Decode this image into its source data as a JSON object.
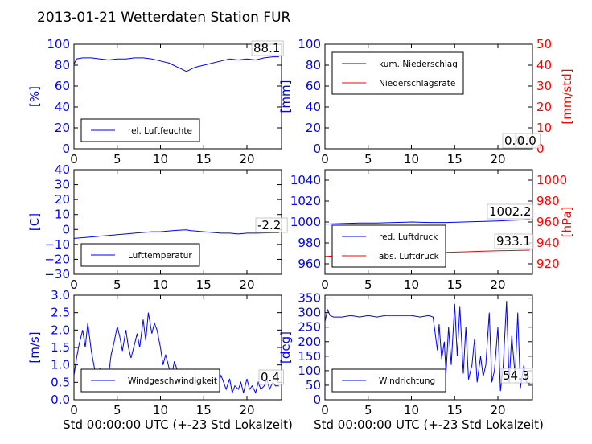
{
  "figure": {
    "title": "2013-01-21 Wetterdaten Station FUR",
    "xlabel": "Std 00:00:00 UTC (+-23 Std Lokalzeit)"
  },
  "colors": {
    "blue": "#0000ff",
    "red": "#ff0000",
    "light_blue": "#7b7bff",
    "black": "#000000"
  },
  "chart_data": [
    {
      "id": "humidity",
      "type": "line",
      "ylabel": "[%]",
      "xlim": [
        0,
        24
      ],
      "ylim": [
        0,
        100
      ],
      "xticks": [
        0,
        5,
        10,
        15,
        20
      ],
      "yticks": [
        0,
        20,
        40,
        60,
        80,
        100
      ],
      "last_value": "88.1",
      "legend": [
        {
          "label": "rel. Luftfeuchte",
          "color": "#0000ff"
        }
      ],
      "series": [
        {
          "name": "rel. Luftfeuchte",
          "color": "#0000ff",
          "x": [
            0,
            0.3,
            1,
            2,
            3,
            4,
            5,
            6,
            7,
            8,
            9,
            10,
            11,
            11.5,
            12,
            12.5,
            13,
            13.5,
            14,
            15,
            16,
            17,
            18,
            19,
            20,
            21,
            22,
            23,
            23.7
          ],
          "y": [
            81,
            86,
            87,
            87,
            86,
            85,
            86,
            86,
            87,
            87,
            86,
            84,
            82,
            80,
            78,
            76,
            74,
            76,
            78,
            80,
            82,
            84,
            86,
            85,
            86,
            85,
            87,
            88,
            88
          ]
        }
      ]
    },
    {
      "id": "precip",
      "type": "line",
      "ylabel": "[mm]",
      "y2label": "[mm/std]",
      "xlim": [
        0,
        24
      ],
      "ylim": [
        0,
        100
      ],
      "y2lim": [
        0,
        50
      ],
      "xticks": [
        0,
        5,
        10,
        15,
        20
      ],
      "yticks": [
        0,
        20,
        40,
        60,
        80,
        100
      ],
      "y2ticks": [
        0,
        10,
        20,
        30,
        40,
        50
      ],
      "last_value": "0.0",
      "last_value2": "0.0",
      "legend": [
        {
          "label": "kum. Niederschlag",
          "color": "#0000ff"
        },
        {
          "label": "Niederschlagsrate",
          "color": "#ff0000"
        }
      ],
      "series": [
        {
          "name": "kum. Niederschlag",
          "color": "#0000ff",
          "axis": "y",
          "x": [
            0,
            24
          ],
          "y": [
            0,
            0
          ]
        },
        {
          "name": "Niederschlagsrate",
          "color": "#ff0000",
          "axis": "y2",
          "x": [
            0,
            24
          ],
          "y": [
            0,
            0
          ]
        }
      ]
    },
    {
      "id": "temperature",
      "type": "line",
      "ylabel": "[C]",
      "xlim": [
        0,
        24
      ],
      "ylim": [
        -30,
        40
      ],
      "xticks": [
        0,
        5,
        10,
        15,
        20
      ],
      "yticks": [
        -30,
        -20,
        -10,
        0,
        10,
        20,
        30,
        40
      ],
      "last_value": "-2.2",
      "legend": [
        {
          "label": "Lufttemperatur",
          "color": "#0000ff"
        }
      ],
      "series": [
        {
          "name": "Lufttemperatur",
          "color": "#0000ff",
          "x": [
            0,
            1,
            2,
            3,
            4,
            5,
            6,
            7,
            8,
            9,
            10,
            11,
            12,
            13,
            13.5,
            14,
            15,
            16,
            17,
            18,
            19,
            20,
            21,
            22,
            23,
            23.7
          ],
          "y": [
            -6,
            -5.5,
            -5,
            -4.5,
            -4,
            -3.5,
            -3,
            -2.5,
            -2,
            -1.5,
            -1.5,
            -1,
            -0.5,
            -0.2,
            -0.8,
            -1,
            -1.5,
            -2,
            -2.5,
            -2.5,
            -3,
            -2.5,
            -2.5,
            -2.3,
            -2.2,
            -2.2
          ]
        }
      ]
    },
    {
      "id": "pressure",
      "type": "line",
      "y2label": "[hPa]",
      "xlim": [
        0,
        24
      ],
      "ylim": [
        950,
        1050
      ],
      "y2lim": [
        910,
        1010
      ],
      "xticks": [
        0,
        5,
        10,
        15,
        20
      ],
      "yticks": [
        960,
        980,
        1000,
        1020,
        1040
      ],
      "y2ticks": [
        920,
        940,
        960,
        980,
        1000
      ],
      "last_value": "1002.2",
      "last_value2": "933.1",
      "legend": [
        {
          "label": "red. Luftdruck",
          "color": "#0000ff"
        },
        {
          "label": "abs. Luftdruck",
          "color": "#ff0000"
        }
      ],
      "series": [
        {
          "name": "red. Luftdruck",
          "color": "#0000ff",
          "axis": "y",
          "x": [
            0,
            2,
            4,
            6,
            8,
            10,
            12,
            14,
            16,
            18,
            20,
            22,
            23.7
          ],
          "y": [
            998,
            998.5,
            999,
            999,
            999.5,
            1000,
            999.5,
            999.5,
            1000,
            1000.5,
            1001,
            1001.8,
            1002.2
          ]
        },
        {
          "name": "abs. Luftdruck",
          "color": "#ff0000",
          "axis": "y2",
          "x": [
            0,
            2,
            4,
            6,
            8,
            10,
            12,
            14,
            16,
            18,
            20,
            22,
            23.7
          ],
          "y": [
            927,
            928,
            928.5,
            929,
            929.5,
            930,
            930.5,
            931,
            931.5,
            932,
            932.5,
            932.8,
            933.1
          ]
        }
      ]
    },
    {
      "id": "wind_speed",
      "type": "line",
      "ylabel": "[m/s]",
      "xlim": [
        0,
        24
      ],
      "ylim": [
        0,
        3
      ],
      "xticks": [
        0,
        5,
        10,
        15,
        20
      ],
      "yticks": [
        0.0,
        0.5,
        1.0,
        1.5,
        2.0,
        2.5,
        3.0
      ],
      "last_value": "0.4",
      "legend": [
        {
          "label": "Windgeschwindigkeit",
          "color": "#0000ff"
        }
      ],
      "series": [
        {
          "name": "Windgeschwindigkeit",
          "color": "#0000ff",
          "x": [
            0,
            0.3,
            0.6,
            1,
            1.3,
            1.6,
            2,
            2.3,
            2.6,
            3,
            3.3,
            3.6,
            4,
            4.3,
            4.6,
            5,
            5.3,
            5.6,
            6,
            6.3,
            6.6,
            7,
            7.3,
            7.6,
            8,
            8.3,
            8.6,
            9,
            9.3,
            9.6,
            10,
            10.3,
            10.6,
            11,
            11.3,
            11.6,
            12,
            12.3,
            12.6,
            13,
            13.3,
            13.6,
            14,
            14.3,
            14.6,
            15,
            15.3,
            15.6,
            16,
            16.3,
            16.6,
            17,
            17.3,
            17.6,
            18,
            18.3,
            18.6,
            19,
            19.3,
            19.6,
            20,
            20.3,
            20.6,
            21,
            21.3,
            21.6,
            22,
            22.3,
            22.6,
            23,
            23.3,
            23.7
          ],
          "y": [
            0.7,
            1.2,
            1.6,
            2.0,
            1.5,
            2.2,
            1.4,
            1.0,
            0.6,
            0.9,
            0.5,
            0.8,
            0.7,
            1.3,
            1.6,
            2.1,
            1.8,
            1.4,
            2.0,
            1.5,
            1.2,
            1.6,
            1.9,
            1.5,
            2.3,
            1.7,
            2.5,
            1.9,
            2.2,
            2.0,
            1.5,
            1.0,
            1.3,
            0.9,
            0.7,
            1.1,
            0.8,
            0.5,
            0.9,
            0.3,
            0.6,
            0.4,
            0.9,
            0.5,
            0.7,
            0.4,
            0.6,
            0.3,
            0.8,
            0.5,
            0.4,
            0.7,
            0.5,
            0.3,
            0.6,
            0.2,
            0.4,
            0.3,
            0.5,
            0.2,
            0.6,
            0.3,
            0.4,
            0.2,
            0.5,
            0.3,
            0.4,
            0.6,
            0.3,
            0.5,
            0.4,
            0.4
          ]
        }
      ]
    },
    {
      "id": "wind_direction",
      "type": "line",
      "ylabel": "[deg]",
      "xlim": [
        0,
        24
      ],
      "ylim": [
        0,
        360
      ],
      "xticks": [
        0,
        5,
        10,
        15,
        20
      ],
      "yticks": [
        0,
        50,
        100,
        150,
        200,
        250,
        300,
        350
      ],
      "last_value": "54.3",
      "legend": [
        {
          "label": "Windrichtung",
          "color": "#0000ff"
        }
      ],
      "series": [
        {
          "name": "Windrichtung",
          "color": "#0000ff",
          "x": [
            0,
            0.3,
            0.6,
            1,
            2,
            3,
            4,
            5,
            6,
            7,
            8,
            9,
            10,
            11,
            12,
            12.5,
            13,
            13.2,
            13.5,
            13.8,
            14,
            14.3,
            14.6,
            15,
            15.3,
            15.6,
            16,
            16.3,
            16.6,
            17,
            17.3,
            17.6,
            18,
            18.3,
            18.6,
            19,
            19.3,
            19.6,
            20,
            20.3,
            20.6,
            21,
            21.3,
            21.6,
            22,
            22.3,
            22.6,
            23,
            23.3,
            23.7
          ],
          "y": [
            270,
            310,
            290,
            285,
            285,
            290,
            285,
            290,
            285,
            290,
            290,
            290,
            290,
            285,
            290,
            285,
            170,
            260,
            140,
            200,
            90,
            250,
            120,
            330,
            150,
            320,
            90,
            250,
            70,
            120,
            210,
            60,
            150,
            80,
            120,
            300,
            60,
            100,
            250,
            30,
            110,
            340,
            60,
            220,
            80,
            300,
            40,
            120,
            60,
            55
          ]
        }
      ]
    }
  ]
}
